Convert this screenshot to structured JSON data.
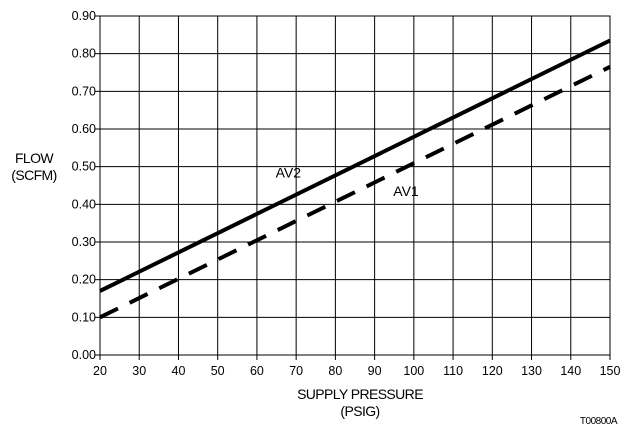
{
  "chart_data": {
    "type": "line",
    "title": "",
    "xlabel": [
      "SUPPLY PRESSURE",
      "(PSIG)"
    ],
    "ylabel": [
      "FLOW",
      "(SCFM)"
    ],
    "xlim": [
      20,
      150
    ],
    "ylim": [
      0,
      0.9
    ],
    "x_ticks": [
      "20",
      "30",
      "40",
      "50",
      "60",
      "70",
      "80",
      "90",
      "100",
      "110",
      "120",
      "130",
      "140",
      "150"
    ],
    "y_ticks": [
      "0.00",
      "0.10",
      "0.20",
      "0.30",
      "0.40",
      "0.50",
      "0.60",
      "0.70",
      "0.80",
      "0.90"
    ],
    "grid": true,
    "series": [
      {
        "name": "AV2",
        "style": "solid",
        "color": "#000000",
        "x": [
          20,
          150
        ],
        "y": [
          0.17,
          0.835
        ]
      },
      {
        "name": "AV1",
        "style": "dashed",
        "color": "#000000",
        "x": [
          20,
          150
        ],
        "y": [
          0.1,
          0.765
        ]
      }
    ],
    "annotations": [
      {
        "text": "AV2",
        "x": 68,
        "y": 0.485
      },
      {
        "text": "AV1",
        "x": 98,
        "y": 0.435
      }
    ]
  },
  "figure_id": "T00800A"
}
